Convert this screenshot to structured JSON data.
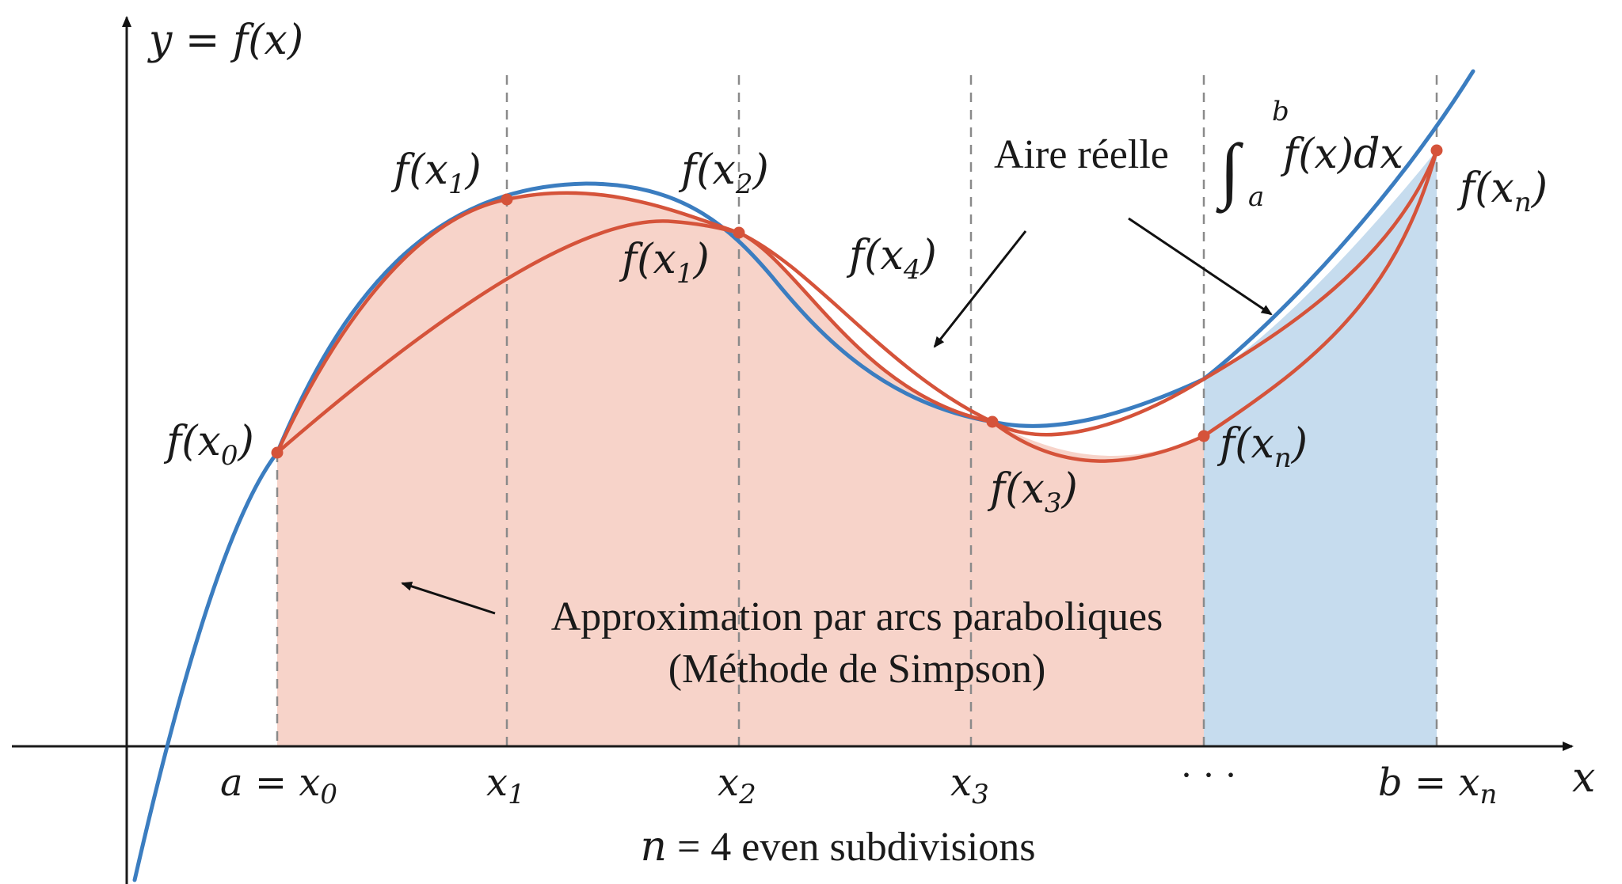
{
  "axes": {
    "y_axis_label": "y = f(x)",
    "x_axis_label": "x"
  },
  "ticks": {
    "t0": {
      "lhs": "a = x",
      "sub": "0"
    },
    "t1": {
      "lhs": "x",
      "sub": "1"
    },
    "t2": {
      "lhs": "x",
      "sub": "2"
    },
    "t3": {
      "lhs": "x",
      "sub": "3"
    },
    "t4": {
      "lhs": "· · ·"
    },
    "t5": {
      "lhs": "b = x",
      "sub": "n"
    }
  },
  "point_labels": {
    "p0": {
      "pre": "f(x",
      "sub": "0",
      "post": ")"
    },
    "p1": {
      "pre": "f(x",
      "sub": "1",
      "post": ")"
    },
    "p2": {
      "pre": "f(x",
      "sub": "2",
      "post": ")"
    },
    "p2b": {
      "pre": "f(x",
      "sub": "1",
      "post": ")"
    },
    "p4": {
      "pre": "f(x",
      "sub": "4",
      "post": ")"
    },
    "p3": {
      "pre": "f(x",
      "sub": "3",
      "post": ")"
    },
    "pn_mid": {
      "pre": "f(x",
      "sub": "n",
      "post": ")"
    },
    "pn_top": {
      "pre": "f(x",
      "sub": "n",
      "post": ")"
    }
  },
  "annotations": {
    "real_area_label": "Aire réelle",
    "integral": {
      "sign": "∫",
      "upper": "b",
      "lower": "a",
      "body": "f(x)dx"
    },
    "approx_line1": "Approximation par arcs paraboliques",
    "approx_line2": "(Méthode de Simpson)",
    "subdivisions": {
      "var": "n",
      "rest": " = 4 even subdivisions"
    }
  },
  "colors": {
    "true_curve": "#3b7dc0",
    "parabolic_arcs": "#d5533a",
    "approx_fill": "#f6cfc4",
    "true_area_fill": "#c6dcee"
  }
}
